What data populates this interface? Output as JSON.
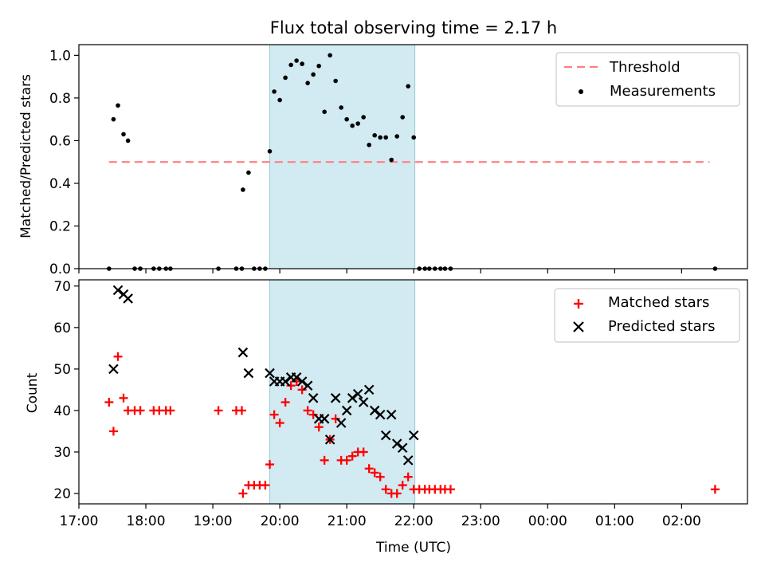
{
  "chart_data": [
    {
      "type": "scatter",
      "title": "Flux total observing time = 2.17 h",
      "xlabel": "",
      "ylabel": "Matched/Predicted stars",
      "xlim": [
        "17:00",
        "02:59"
      ],
      "ylim": [
        0,
        1.05
      ],
      "yticks": [
        0,
        0.2,
        0.4,
        0.6,
        0.8,
        1.0
      ],
      "ytick_labels": [
        "0.0",
        "0.2",
        "0.4",
        "0.6",
        "0.8",
        "1.0"
      ],
      "shaded_span": [
        "19:51",
        "22:01"
      ],
      "legend_position": "upper right",
      "threshold": {
        "name": "Threshold",
        "value": 0.5,
        "x_range": [
          "17:27",
          "02:25"
        ],
        "color": "#ff7f7f"
      },
      "series": [
        {
          "name": "Measurements",
          "color": "#000000",
          "points": [
            [
              "17:27",
              0
            ],
            [
              "17:31",
              0.7
            ],
            [
              "17:35",
              0.765
            ],
            [
              "17:40",
              0.63
            ],
            [
              "17:44",
              0.6
            ],
            [
              "17:50",
              0
            ],
            [
              "17:55",
              0
            ],
            [
              "18:07",
              0
            ],
            [
              "18:12",
              0
            ],
            [
              "18:18",
              0
            ],
            [
              "18:22",
              0
            ],
            [
              "19:05",
              0
            ],
            [
              "19:21",
              0
            ],
            [
              "19:26",
              0
            ],
            [
              "19:27",
              0.37
            ],
            [
              "19:32",
              0.45
            ],
            [
              "19:37",
              0
            ],
            [
              "19:42",
              0
            ],
            [
              "19:47",
              0
            ],
            [
              "19:51",
              0.55
            ],
            [
              "19:55",
              0.83
            ],
            [
              "20:00",
              0.79
            ],
            [
              "20:05",
              0.895
            ],
            [
              "20:10",
              0.955
            ],
            [
              "20:15",
              0.975
            ],
            [
              "20:20",
              0.96
            ],
            [
              "20:25",
              0.87
            ],
            [
              "20:30",
              0.91
            ],
            [
              "20:35",
              0.95
            ],
            [
              "20:40",
              0.735
            ],
            [
              "20:45",
              1.0
            ],
            [
              "20:50",
              0.88
            ],
            [
              "20:55",
              0.755
            ],
            [
              "21:00",
              0.7
            ],
            [
              "21:05",
              0.67
            ],
            [
              "21:10",
              0.68
            ],
            [
              "21:15",
              0.71
            ],
            [
              "21:20",
              0.58
            ],
            [
              "21:25",
              0.625
            ],
            [
              "21:30",
              0.615
            ],
            [
              "21:35",
              0.615
            ],
            [
              "21:40",
              0.51
            ],
            [
              "21:45",
              0.62
            ],
            [
              "21:50",
              0.71
            ],
            [
              "21:55",
              0.855
            ],
            [
              "22:00",
              0.615
            ],
            [
              "22:05",
              0
            ],
            [
              "22:10",
              0
            ],
            [
              "22:14",
              0
            ],
            [
              "22:19",
              0
            ],
            [
              "22:24",
              0
            ],
            [
              "22:28",
              0
            ],
            [
              "22:33",
              0
            ],
            [
              "02:30",
              0
            ]
          ]
        }
      ]
    },
    {
      "type": "scatter",
      "title": "",
      "xlabel": "Time (UTC)",
      "ylabel": "Count",
      "xlim": [
        "17:00",
        "02:59"
      ],
      "ylim": [
        17.5,
        71.5
      ],
      "yticks": [
        20,
        30,
        40,
        50,
        60,
        70
      ],
      "ytick_labels": [
        "20",
        "30",
        "40",
        "50",
        "60",
        "70"
      ],
      "xticks": [
        "17:00",
        "18:00",
        "19:00",
        "20:00",
        "21:00",
        "22:00",
        "23:00",
        "00:00",
        "01:00",
        "02:00"
      ],
      "shaded_span": [
        "19:51",
        "22:01"
      ],
      "legend_position": "upper right",
      "series": [
        {
          "name": "Matched stars",
          "marker": "+",
          "color": "#ff0000",
          "points": [
            [
              "17:27",
              42
            ],
            [
              "17:31",
              35
            ],
            [
              "17:35",
              53
            ],
            [
              "17:40",
              43
            ],
            [
              "17:44",
              40
            ],
            [
              "17:50",
              40
            ],
            [
              "17:55",
              40
            ],
            [
              "18:07",
              40
            ],
            [
              "18:12",
              40
            ],
            [
              "18:18",
              40
            ],
            [
              "18:22",
              40
            ],
            [
              "19:05",
              40
            ],
            [
              "19:21",
              40
            ],
            [
              "19:26",
              40
            ],
            [
              "19:27",
              20
            ],
            [
              "19:32",
              22
            ],
            [
              "19:37",
              22
            ],
            [
              "19:42",
              22
            ],
            [
              "19:47",
              22
            ],
            [
              "19:51",
              27
            ],
            [
              "19:55",
              39
            ],
            [
              "20:00",
              37
            ],
            [
              "20:05",
              42
            ],
            [
              "20:10",
              46
            ],
            [
              "20:15",
              47
            ],
            [
              "20:20",
              45
            ],
            [
              "20:25",
              40
            ],
            [
              "20:30",
              39
            ],
            [
              "20:35",
              36
            ],
            [
              "20:40",
              28
            ],
            [
              "20:45",
              33
            ],
            [
              "20:50",
              38
            ],
            [
              "20:55",
              28
            ],
            [
              "21:00",
              28
            ],
            [
              "21:05",
              29
            ],
            [
              "21:10",
              30
            ],
            [
              "21:15",
              30
            ],
            [
              "21:20",
              26
            ],
            [
              "21:25",
              25
            ],
            [
              "21:30",
              24
            ],
            [
              "21:35",
              21
            ],
            [
              "21:40",
              20
            ],
            [
              "21:45",
              20
            ],
            [
              "21:50",
              22
            ],
            [
              "21:55",
              24
            ],
            [
              "22:00",
              21
            ],
            [
              "22:05",
              21
            ],
            [
              "22:10",
              21
            ],
            [
              "22:14",
              21
            ],
            [
              "22:19",
              21
            ],
            [
              "22:24",
              21
            ],
            [
              "22:28",
              21
            ],
            [
              "22:33",
              21
            ],
            [
              "02:30",
              21
            ]
          ]
        },
        {
          "name": "Predicted stars",
          "marker": "x",
          "color": "#000000",
          "points": [
            [
              "17:31",
              50
            ],
            [
              "17:35",
              69
            ],
            [
              "17:40",
              68
            ],
            [
              "17:44",
              67
            ],
            [
              "19:27",
              54
            ],
            [
              "19:32",
              49
            ],
            [
              "19:51",
              49
            ],
            [
              "19:55",
              47
            ],
            [
              "20:00",
              47
            ],
            [
              "20:05",
              47
            ],
            [
              "20:10",
              48
            ],
            [
              "20:15",
              48
            ],
            [
              "20:20",
              47
            ],
            [
              "20:25",
              46
            ],
            [
              "20:30",
              43
            ],
            [
              "20:35",
              38
            ],
            [
              "20:40",
              38
            ],
            [
              "20:45",
              33
            ],
            [
              "20:50",
              43
            ],
            [
              "20:55",
              37
            ],
            [
              "21:00",
              40
            ],
            [
              "21:05",
              43
            ],
            [
              "21:10",
              44
            ],
            [
              "21:15",
              42
            ],
            [
              "21:20",
              45
            ],
            [
              "21:25",
              40
            ],
            [
              "21:30",
              39
            ],
            [
              "21:35",
              34
            ],
            [
              "21:40",
              39
            ],
            [
              "21:45",
              32
            ],
            [
              "21:50",
              31
            ],
            [
              "21:55",
              28
            ],
            [
              "22:00",
              34
            ]
          ]
        }
      ]
    }
  ]
}
